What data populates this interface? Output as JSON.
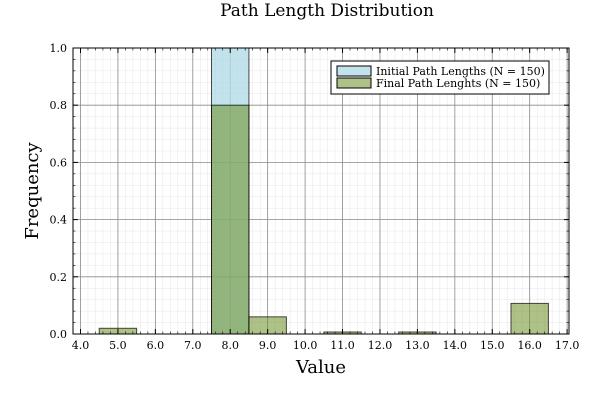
{
  "chart_data": {
    "type": "bar",
    "title": "Path Length Distribution",
    "xlabel": "Value",
    "ylabel": "Frequency",
    "xlim": [
      3.8,
      17.05
    ],
    "ylim": [
      0,
      1.0
    ],
    "bin_width": 1.0,
    "x_ticks": [
      4.0,
      5.0,
      6.0,
      7.0,
      8.0,
      9.0,
      10.0,
      11.0,
      12.0,
      13.0,
      14.0,
      15.0,
      16.0,
      17.0
    ],
    "x_tick_labels": [
      "4.0",
      "5.0",
      "6.0",
      "7.0",
      "8.0",
      "9.0",
      "10.0",
      "11.0",
      "12.0",
      "13.0",
      "14.0",
      "15.0",
      "16.0",
      "17.0"
    ],
    "y_ticks": [
      0,
      0.2,
      0.4,
      0.6,
      0.8,
      1.0
    ],
    "y_tick_labels": [
      "0.0",
      "0.2",
      "0.4",
      "0.6",
      "0.8",
      "1.0"
    ],
    "grid": true,
    "minor_grid": true,
    "legend_position": "top-right",
    "series": [
      {
        "name": "Initial Path Lengths (N = 150)",
        "color": "#add8e6",
        "bins": [
          {
            "x": 8.0,
            "value": 1.0
          }
        ]
      },
      {
        "name": "Final Path Lenghts (N = 150)",
        "color": "#6b8e23",
        "bins": [
          {
            "x": 5.0,
            "value": 0.02
          },
          {
            "x": 8.0,
            "value": 0.8
          },
          {
            "x": 9.0,
            "value": 0.06
          },
          {
            "x": 11.0,
            "value": 0.007
          },
          {
            "x": 13.0,
            "value": 0.007
          },
          {
            "x": 16.0,
            "value": 0.107
          }
        ]
      }
    ]
  }
}
